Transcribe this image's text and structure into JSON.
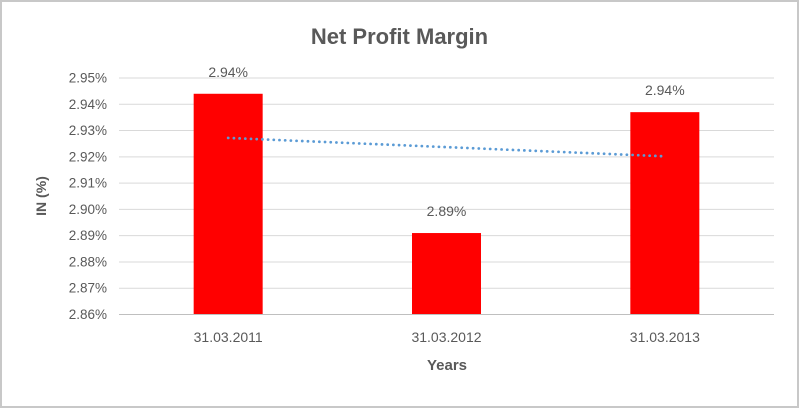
{
  "chart_data": {
    "type": "bar",
    "title": "Net Profit Margin",
    "xlabel": "Years",
    "ylabel": "IN (%)",
    "categories": [
      "31.03.2011",
      "31.03.2012",
      "31.03.2013"
    ],
    "values": [
      2.944,
      2.891,
      2.937
    ],
    "data_labels": [
      "2.94%",
      "2.89%",
      "2.94%"
    ],
    "ylim": [
      2.86,
      2.95
    ],
    "ytick_step": 0.01,
    "ytick_labels": [
      "2.86%",
      "2.87%",
      "2.88%",
      "2.89%",
      "2.90%",
      "2.91%",
      "2.92%",
      "2.93%",
      "2.94%",
      "2.95%"
    ],
    "grid": true,
    "legend": "none",
    "bar_color": "#FF0000",
    "trendline": {
      "type": "linear",
      "style": "dotted",
      "color": "#5B9BD5",
      "start_value": 2.9272,
      "end_value": 2.9202
    },
    "colors": {
      "title": "#595959",
      "axis_text": "#595959",
      "data_label": "#595959",
      "gridline": "#D9D9D9",
      "axis_line": "#BFBFBF",
      "frame_border": "#C8C8C8",
      "background": "#FFFFFF"
    }
  }
}
